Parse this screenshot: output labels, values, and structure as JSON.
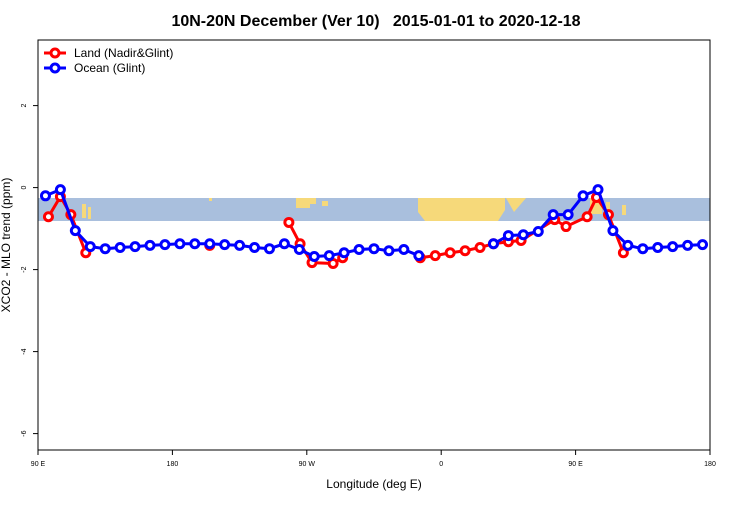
{
  "chart_data": {
    "type": "line",
    "title": "10N-20N December (Ver 10)   2015-01-01 to 2020-12-18",
    "x_label": "Longitude (deg E)",
    "y_label": "XCO2 - MLO trend (ppm)",
    "xlim": [
      90,
      540
    ],
    "ylim": [
      -6.4,
      3.6
    ],
    "xticks": [
      {
        "value": 90,
        "label": "90 E"
      },
      180,
      {
        "value": 270,
        "label": "90 W"
      },
      {
        "value": 360,
        "label": "0"
      },
      {
        "value": 450,
        "label": "90 E"
      },
      {
        "value": 540,
        "label": "180"
      }
    ],
    "yticks": [
      -6,
      -4,
      -2,
      0,
      2
    ],
    "legend": "top-left",
    "series": [
      {
        "name": "Land (Nadir&Glint)",
        "color": "#ff0000",
        "x": [
          97,
          105,
          112,
          122,
          160,
          205,
          230,
          258,
          265.5,
          273.5,
          287.6,
          294,
          320,
          346,
          356,
          366,
          376,
          386,
          395,
          405,
          413.5,
          436,
          443.6,
          457.7,
          464,
          472,
          482
        ],
        "values": [
          -0.71,
          -0.22,
          -0.66,
          -1.59,
          null,
          -1.41,
          null,
          -0.85,
          -1.37,
          -1.83,
          -1.85,
          -1.71,
          null,
          -1.71,
          -1.66,
          -1.59,
          -1.54,
          -1.46,
          -1.37,
          -1.32,
          -1.29,
          -0.78,
          -0.95,
          -0.71,
          -0.24,
          -0.66,
          -1.59
        ]
      },
      {
        "name": "Ocean (Glint)",
        "color": "#0000ff",
        "x": [
          95,
          105,
          115,
          125,
          135,
          145,
          155,
          165,
          175,
          185,
          195,
          205,
          215,
          225,
          235,
          245,
          255,
          265,
          275,
          285,
          295,
          305,
          315,
          325,
          335,
          345,
          355,
          365,
          375,
          385,
          395,
          405,
          415,
          425,
          435,
          445,
          455,
          465,
          475,
          485,
          495,
          505,
          515,
          525,
          535
        ],
        "values": [
          -0.2,
          -0.05,
          -1.05,
          -1.44,
          -1.49,
          -1.46,
          -1.44,
          -1.41,
          -1.39,
          -1.37,
          -1.37,
          -1.37,
          -1.39,
          -1.41,
          -1.46,
          -1.49,
          -1.37,
          -1.51,
          -1.68,
          -1.66,
          -1.59,
          -1.51,
          -1.49,
          -1.54,
          -1.51,
          -1.66,
          null,
          null,
          null,
          null,
          -1.37,
          -1.17,
          -1.15,
          -1.07,
          -0.66,
          -0.66,
          -0.2,
          -0.05,
          -1.05,
          -1.41,
          -1.49,
          -1.46,
          -1.44,
          -1.41,
          -1.39
        ]
      }
    ]
  }
}
